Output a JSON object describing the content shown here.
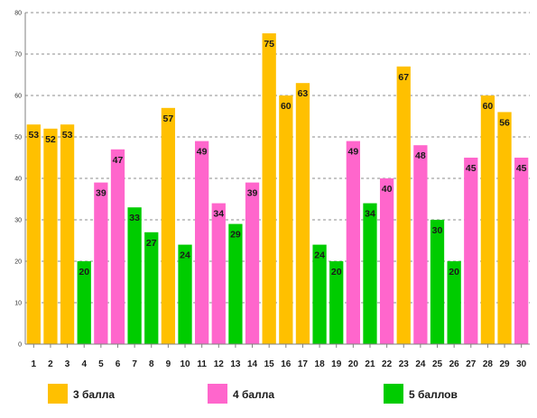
{
  "chart_data": {
    "type": "bar",
    "title": "",
    "xlabel": "",
    "ylabel": "",
    "ylim": [
      0,
      80
    ],
    "yticks": [
      0,
      10,
      20,
      30,
      40,
      50,
      60,
      70,
      80
    ],
    "grid": true,
    "legend_position": "bottom",
    "categories": [
      "1",
      "2",
      "3",
      "4",
      "5",
      "6",
      "7",
      "8",
      "9",
      "10",
      "11",
      "12",
      "13",
      "14",
      "15",
      "16",
      "17",
      "18",
      "19",
      "20",
      "21",
      "22",
      "23",
      "24",
      "25",
      "26",
      "27",
      "28",
      "29",
      "30"
    ],
    "values": [
      53,
      52,
      53,
      20,
      39,
      47,
      33,
      27,
      57,
      24,
      49,
      34,
      29,
      39,
      75,
      60,
      63,
      24,
      20,
      49,
      34,
      40,
      67,
      48,
      30,
      20,
      45,
      60,
      56,
      45
    ],
    "groups": [
      "g3",
      "g3",
      "g3",
      "g5",
      "g4",
      "g4",
      "g5",
      "g5",
      "g3",
      "g5",
      "g4",
      "g4",
      "g5",
      "g4",
      "g3",
      "g3",
      "g3",
      "g5",
      "g5",
      "g4",
      "g5",
      "g4",
      "g3",
      "g4",
      "g5",
      "g5",
      "g4",
      "g3",
      "g3",
      "g4"
    ],
    "series": [
      {
        "key": "g3",
        "name": "3 балла",
        "color": "#ffc000"
      },
      {
        "key": "g4",
        "name": "4 балла",
        "color": "#ff66cc"
      },
      {
        "key": "g5",
        "name": "5 баллов",
        "color": "#00cc00"
      }
    ]
  }
}
